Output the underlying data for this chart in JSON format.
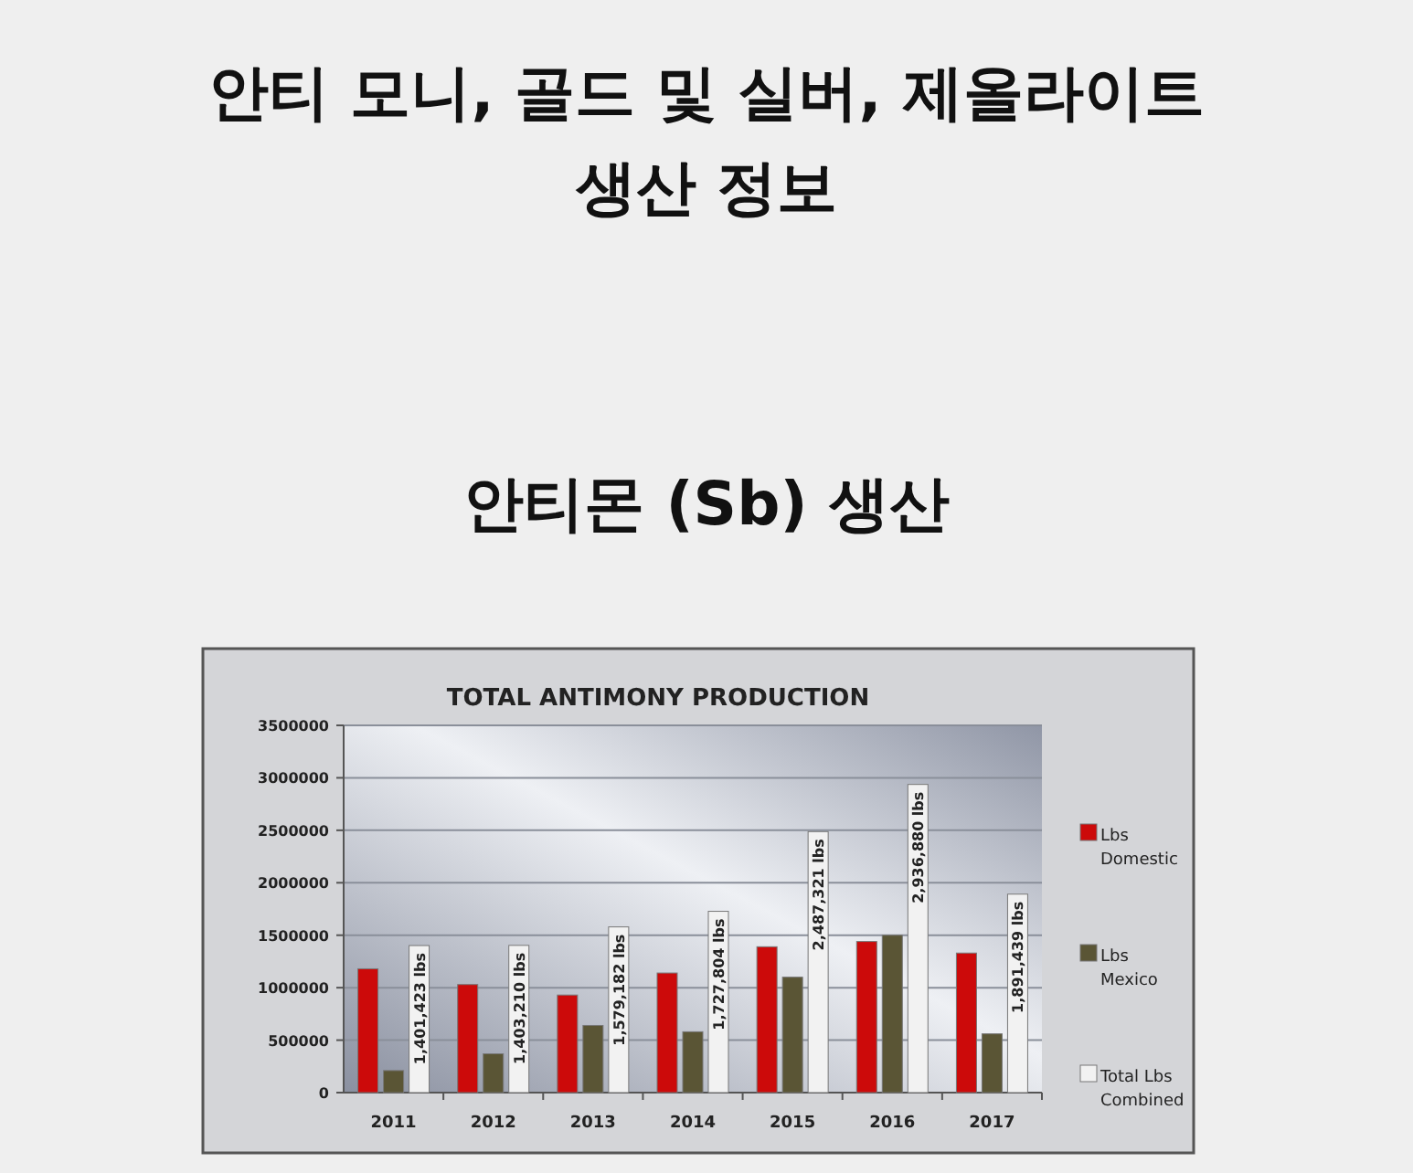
{
  "chart_data": {
    "type": "bar",
    "title": "안티 모니, 골드 및 실버, 제올라이트 생산 정보",
    "subtitle": "안티몬 (Sb) 생산",
    "annotations": [
      "TOTAL ANTIMONY PRODUCTION"
    ],
    "categories": [
      "2011",
      "2012",
      "2013",
      "2014",
      "2015",
      "2016",
      "2017"
    ],
    "series": [
      {
        "name": "Lbs Domestic",
        "color": "#cc0a0a",
        "values": [
          1180000,
          1030000,
          930000,
          1140000,
          1390000,
          1440000,
          1330000
        ]
      },
      {
        "name": "Lbs Mexico",
        "color": "#5a5535",
        "values": [
          210000,
          370000,
          640000,
          580000,
          1100000,
          1500000,
          560000
        ]
      },
      {
        "name": "Total Lbs Combined",
        "color": "#f2f2f2",
        "values": [
          1401423,
          1403210,
          1579182,
          1727804,
          2487321,
          2936880,
          1891439
        ],
        "value_labels": [
          "1,401,423 lbs",
          "1,403,210 lbs",
          "1,579,182 lbs",
          "1,727,804 lbs",
          "2,487,321 lbs",
          "2,936,880 lbs",
          "1,891,439 lbs"
        ]
      }
    ],
    "ylim": [
      0,
      3500000
    ],
    "yticks": [
      0,
      500000,
      1000000,
      1500000,
      2000000,
      2500000,
      3000000,
      3500000
    ],
    "grid": "y",
    "legend": "right"
  }
}
